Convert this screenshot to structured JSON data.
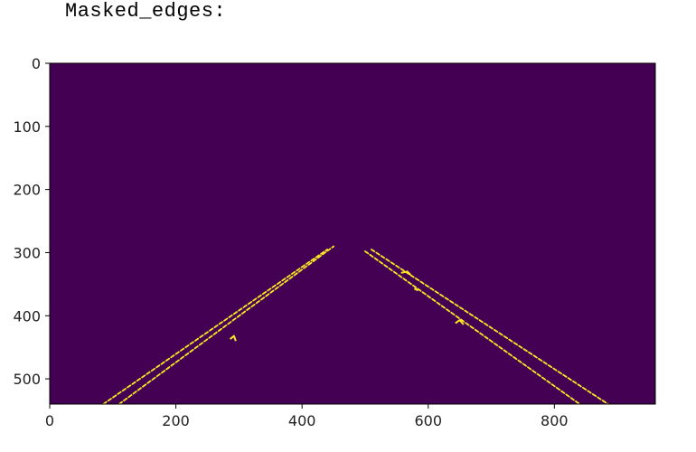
{
  "cell": {
    "output_label": "Masked_edges:"
  },
  "chart_data": {
    "type": "heatmap",
    "colormap": "viridis",
    "colors": {
      "background": "#440154",
      "edge": "#fde725",
      "axis": "#000000"
    },
    "xlim": [
      0,
      960
    ],
    "ylim": [
      540,
      0
    ],
    "x_ticks": [
      0,
      200,
      400,
      600,
      800
    ],
    "y_ticks": [
      0,
      100,
      200,
      300,
      400,
      500
    ],
    "x_tick_labels": [
      "0",
      "200",
      "400",
      "600",
      "800"
    ],
    "y_tick_labels": [
      "0",
      "100",
      "200",
      "300",
      "400",
      "500"
    ],
    "grid": false,
    "edge_segments": [
      {
        "name": "left-outer-edge",
        "points": [
          [
            85,
            540
          ],
          [
            440,
            295
          ]
        ]
      },
      {
        "name": "left-inner-edge",
        "points": [
          [
            110,
            540
          ],
          [
            450,
            290
          ]
        ]
      },
      {
        "name": "right-inner-edge",
        "points": [
          [
            500,
            298
          ],
          [
            840,
            540
          ]
        ]
      },
      {
        "name": "right-outer-edge",
        "points": [
          [
            510,
            295
          ],
          [
            885,
            540
          ]
        ]
      }
    ],
    "edge_blobs": [
      {
        "name": "blob-left",
        "points": [
          [
            286,
            437
          ],
          [
            292,
            432
          ],
          [
            295,
            440
          ]
        ]
      },
      {
        "name": "blob-right-upper",
        "points": [
          [
            557,
            332
          ],
          [
            567,
            330
          ],
          [
            572,
            335
          ]
        ]
      },
      {
        "name": "blob-right-lower",
        "points": [
          [
            643,
            412
          ],
          [
            650,
            407
          ],
          [
            656,
            414
          ]
        ]
      },
      {
        "name": "blob-right-mid",
        "points": [
          [
            578,
            357
          ],
          [
            584,
            360
          ]
        ]
      }
    ]
  }
}
